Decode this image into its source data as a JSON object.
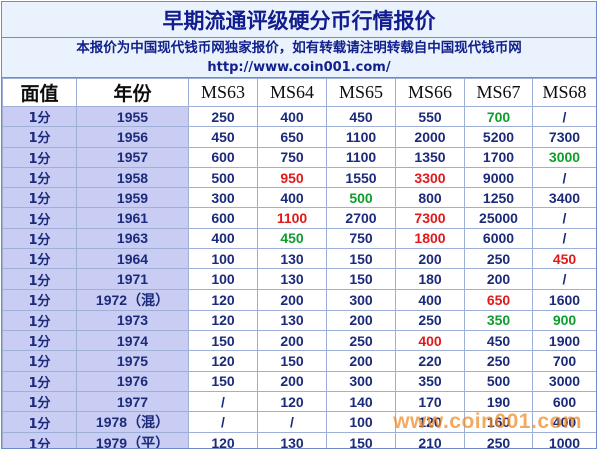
{
  "title": "早期流通评级硬分币行情报价",
  "notice": {
    "line1": "本报价为中国现代钱币网独家报价，如有转载请注明转载自中国现代钱币网",
    "url": "http://www.coin001.com/"
  },
  "columns": [
    "面值",
    "年份",
    "MS63",
    "MS64",
    "MS65",
    "MS66",
    "MS67",
    "MS68"
  ],
  "rows": [
    {
      "denom": "1分",
      "year": "1955",
      "values": [
        "250",
        "400",
        "450",
        "550",
        "700",
        "/"
      ],
      "colors": [
        "",
        "",
        "",
        "",
        "green",
        ""
      ]
    },
    {
      "denom": "1分",
      "year": "1956",
      "values": [
        "450",
        "650",
        "1100",
        "2000",
        "5200",
        "7300"
      ],
      "colors": [
        "",
        "",
        "",
        "",
        "",
        ""
      ]
    },
    {
      "denom": "1分",
      "year": "1957",
      "values": [
        "600",
        "750",
        "1100",
        "1350",
        "1700",
        "3000"
      ],
      "colors": [
        "",
        "",
        "",
        "",
        "",
        "green"
      ]
    },
    {
      "denom": "1分",
      "year": "1958",
      "values": [
        "500",
        "950",
        "1550",
        "3300",
        "9000",
        "/"
      ],
      "colors": [
        "",
        "red",
        "",
        "red",
        "",
        ""
      ]
    },
    {
      "denom": "1分",
      "year": "1959",
      "values": [
        "300",
        "400",
        "500",
        "800",
        "1250",
        "3400"
      ],
      "colors": [
        "",
        "",
        "green",
        "",
        "",
        ""
      ]
    },
    {
      "denom": "1分",
      "year": "1961",
      "values": [
        "600",
        "1100",
        "2700",
        "7300",
        "25000",
        "/"
      ],
      "colors": [
        "",
        "red",
        "",
        "red",
        "",
        ""
      ]
    },
    {
      "denom": "1分",
      "year": "1963",
      "values": [
        "400",
        "450",
        "750",
        "1800",
        "6000",
        "/"
      ],
      "colors": [
        "",
        "green",
        "",
        "red",
        "",
        ""
      ]
    },
    {
      "denom": "1分",
      "year": "1964",
      "values": [
        "100",
        "130",
        "150",
        "200",
        "250",
        "450"
      ],
      "colors": [
        "",
        "",
        "",
        "",
        "",
        "red"
      ]
    },
    {
      "denom": "1分",
      "year": "1971",
      "values": [
        "100",
        "130",
        "150",
        "180",
        "200",
        "/"
      ],
      "colors": [
        "",
        "",
        "",
        "",
        "",
        ""
      ]
    },
    {
      "denom": "1分",
      "year": "1972（混）",
      "values": [
        "120",
        "200",
        "300",
        "400",
        "650",
        "1600"
      ],
      "colors": [
        "",
        "",
        "",
        "",
        "red",
        ""
      ]
    },
    {
      "denom": "1分",
      "year": "1973",
      "values": [
        "120",
        "130",
        "200",
        "250",
        "350",
        "900"
      ],
      "colors": [
        "",
        "",
        "",
        "",
        "green",
        "green"
      ]
    },
    {
      "denom": "1分",
      "year": "1974",
      "values": [
        "150",
        "200",
        "250",
        "400",
        "450",
        "1900"
      ],
      "colors": [
        "",
        "",
        "",
        "red",
        "",
        ""
      ]
    },
    {
      "denom": "1分",
      "year": "1975",
      "values": [
        "120",
        "150",
        "200",
        "220",
        "250",
        "700"
      ],
      "colors": [
        "",
        "",
        "",
        "",
        "",
        ""
      ]
    },
    {
      "denom": "1分",
      "year": "1976",
      "values": [
        "150",
        "200",
        "300",
        "350",
        "500",
        "3000"
      ],
      "colors": [
        "",
        "",
        "",
        "",
        "",
        ""
      ]
    },
    {
      "denom": "1分",
      "year": "1977",
      "values": [
        "/",
        "120",
        "140",
        "170",
        "190",
        "600"
      ],
      "colors": [
        "",
        "",
        "",
        "",
        "",
        ""
      ]
    },
    {
      "denom": "1分",
      "year": "1978（混）",
      "values": [
        "/",
        "/",
        "100",
        "120",
        "160",
        "400"
      ],
      "colors": [
        "",
        "",
        "",
        "",
        "",
        ""
      ]
    },
    {
      "denom": "1分",
      "year": "1979（平）",
      "values": [
        "120",
        "130",
        "150",
        "210",
        "250",
        "1000"
      ],
      "colors": [
        "",
        "",
        "",
        "",
        "",
        ""
      ]
    }
  ],
  "watermark": "www.coin001.com",
  "colors": {
    "red": "#e0191b",
    "green": "#0e9d2e",
    "text": "#1b2a7a",
    "label_bg": "#c9cdf3"
  }
}
